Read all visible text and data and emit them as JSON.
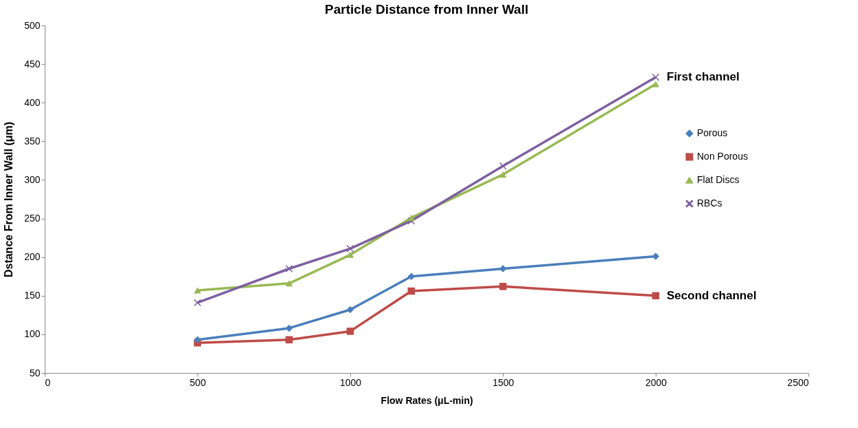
{
  "chart_data": {
    "type": "line",
    "title": "Particle Distance from Inner Wall",
    "xlabel": "Flow Rates (μL-min)",
    "ylabel": "Dstance From Inner Wall (μm)",
    "x": [
      500,
      800,
      1000,
      1200,
      1500,
      2000
    ],
    "series": [
      {
        "name": "Porous",
        "color": "#4a7ebb",
        "marker": "diamond",
        "values": [
          93,
          108,
          132,
          175,
          185,
          201
        ]
      },
      {
        "name": "Non Porous",
        "color": "#be4b48",
        "marker": "square",
        "values": [
          89,
          93,
          104,
          156,
          162,
          150
        ]
      },
      {
        "name": "Flat Discs",
        "color": "#98b954",
        "marker": "triangle",
        "values": [
          157,
          166,
          203,
          251,
          307,
          424
        ]
      },
      {
        "name": "RBCs",
        "color": "#7d60a0",
        "marker": "cross",
        "values": [
          141,
          185,
          211,
          247,
          318,
          433
        ]
      }
    ],
    "annotations": [
      {
        "text": "First channel",
        "x": 2000,
        "y": 433
      },
      {
        "text": "Second channel",
        "x": 2000,
        "y": 150
      }
    ],
    "xlim": [
      0,
      2500
    ],
    "xticks": [
      0,
      500,
      1000,
      1500,
      2000,
      2500
    ],
    "ylim": [
      50,
      500
    ],
    "yticks": [
      50,
      100,
      150,
      200,
      250,
      300,
      350,
      400,
      450,
      500
    ],
    "grid": false,
    "legend": "right",
    "line_style": "solid"
  }
}
